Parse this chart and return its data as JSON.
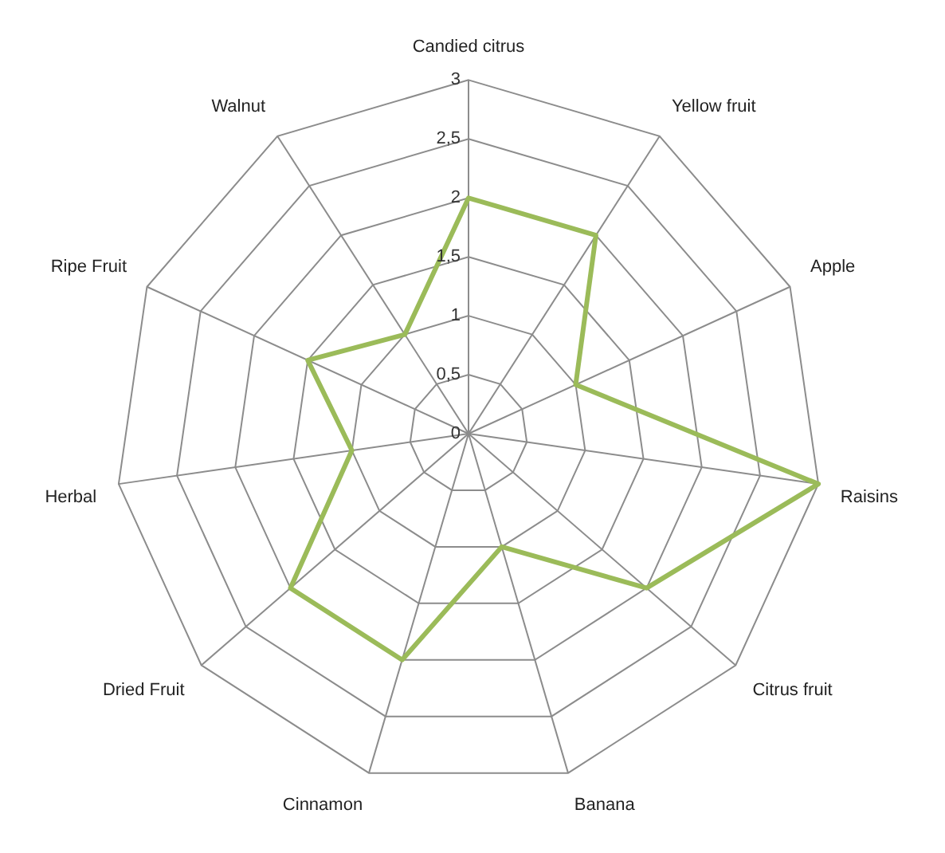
{
  "chart_data": {
    "type": "radar",
    "categories": [
      "Candied citrus",
      "Yellow fruit",
      "Apple",
      "Raisins",
      "Citrus fruit",
      "Banana",
      "Cinnamon",
      "Dried Fruit",
      "Herbal",
      "Ripe Fruit",
      "Walnut"
    ],
    "series": [
      {
        "color": "#9bbb59",
        "values": [
          2,
          2,
          1,
          3,
          2,
          1,
          2,
          2,
          1,
          1.5,
          1
        ]
      }
    ],
    "ylim": [
      0,
      3
    ],
    "yticks": [
      0,
      {
        "value": 0.5,
        "label": "0,5"
      },
      1,
      {
        "value": 1.5,
        "label": "1,5"
      },
      2,
      {
        "value": 2.5,
        "label": "2,5"
      },
      3
    ],
    "grid": true,
    "legend": false,
    "marker": "none",
    "line_style": "solid"
  }
}
